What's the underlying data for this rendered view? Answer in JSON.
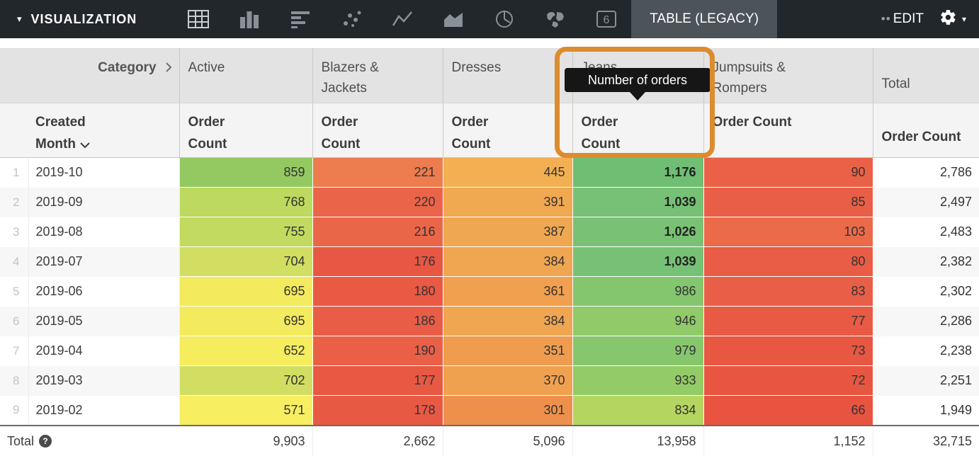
{
  "toolbar": {
    "visualization_label": "VISUALIZATION",
    "table_legacy_label": "TABLE (LEGACY)",
    "edit_label": "EDIT",
    "single_value_digit": "6",
    "icons": [
      "table-icon",
      "column-chart-icon",
      "bar-chart-icon",
      "scatter-plot-icon",
      "line-chart-icon",
      "area-chart-icon",
      "pie-chart-icon",
      "map-icon",
      "single-value-icon"
    ],
    "colors": {
      "bar_bg": "#22272C",
      "selected_btn_bg": "#4C5359",
      "icon_gray": "#8A9097",
      "icon_active": "#C9CDD2"
    }
  },
  "tooltip": {
    "text": "Number of orders"
  },
  "annotation": {
    "color": "#DC8C2E"
  },
  "table": {
    "category_label": "Category",
    "created_month_label": "Created Month",
    "measure_label": "Order Count",
    "columns": [
      "Active",
      "Blazers & Jackets",
      "Dresses",
      "Jeans",
      "Jumpsuits & Rompers",
      "Total"
    ],
    "rows": [
      {
        "num": "1",
        "month": "2019-10",
        "cells": [
          {
            "v": "859",
            "bg": "#94C962"
          },
          {
            "v": "221",
            "bg": "#ED7C4E"
          },
          {
            "v": "445",
            "bg": "#F2B053"
          },
          {
            "v": "1,176",
            "bg": "#6FBE73",
            "bold": true
          },
          {
            "v": "90",
            "bg": "#EA6148"
          },
          {
            "v": "2,786"
          }
        ]
      },
      {
        "num": "2",
        "month": "2019-09",
        "cells": [
          {
            "v": "768",
            "bg": "#BED95F"
          },
          {
            "v": "220",
            "bg": "#EA6449"
          },
          {
            "v": "391",
            "bg": "#F0A851"
          },
          {
            "v": "1,039",
            "bg": "#77C176",
            "bold": true
          },
          {
            "v": "85",
            "bg": "#E95E46"
          },
          {
            "v": "2,497"
          }
        ]
      },
      {
        "num": "3",
        "month": "2019-08",
        "cells": [
          {
            "v": "755",
            "bg": "#C1DA5F"
          },
          {
            "v": "216",
            "bg": "#EA6649"
          },
          {
            "v": "387",
            "bg": "#F0A751"
          },
          {
            "v": "1,026",
            "bg": "#79C275",
            "bold": true
          },
          {
            "v": "103",
            "bg": "#EB6A4A"
          },
          {
            "v": "2,483"
          }
        ]
      },
      {
        "num": "4",
        "month": "2019-07",
        "cells": [
          {
            "v": "704",
            "bg": "#D1DE61"
          },
          {
            "v": "176",
            "bg": "#E85743"
          },
          {
            "v": "384",
            "bg": "#F0A651"
          },
          {
            "v": "1,039",
            "bg": "#77C176",
            "bold": true
          },
          {
            "v": "80",
            "bg": "#E95C45"
          },
          {
            "v": "2,382"
          }
        ]
      },
      {
        "num": "5",
        "month": "2019-06",
        "cells": [
          {
            "v": "695",
            "bg": "#F3EB5D"
          },
          {
            "v": "180",
            "bg": "#E95944"
          },
          {
            "v": "361",
            "bg": "#F0A04F"
          },
          {
            "v": "986",
            "bg": "#84C66E"
          },
          {
            "v": "83",
            "bg": "#E95E46"
          },
          {
            "v": "2,302"
          }
        ]
      },
      {
        "num": "6",
        "month": "2019-05",
        "cells": [
          {
            "v": "695",
            "bg": "#F3EB5D"
          },
          {
            "v": "186",
            "bg": "#E95D46"
          },
          {
            "v": "384",
            "bg": "#F0A651"
          },
          {
            "v": "946",
            "bg": "#90CA69"
          },
          {
            "v": "77",
            "bg": "#E95A44"
          },
          {
            "v": "2,286"
          }
        ]
      },
      {
        "num": "7",
        "month": "2019-04",
        "cells": [
          {
            "v": "652",
            "bg": "#F5EC5E"
          },
          {
            "v": "190",
            "bg": "#E96047"
          },
          {
            "v": "351",
            "bg": "#EF9C4E"
          },
          {
            "v": "979",
            "bg": "#86C76D"
          },
          {
            "v": "73",
            "bg": "#E85742"
          },
          {
            "v": "2,238"
          }
        ]
      },
      {
        "num": "8",
        "month": "2019-03",
        "cells": [
          {
            "v": "702",
            "bg": "#D2DE62"
          },
          {
            "v": "177",
            "bg": "#E85843"
          },
          {
            "v": "370",
            "bg": "#F0A150"
          },
          {
            "v": "933",
            "bg": "#93CB67"
          },
          {
            "v": "72",
            "bg": "#E85641"
          },
          {
            "v": "2,251"
          }
        ]
      },
      {
        "num": "9",
        "month": "2019-02",
        "cells": [
          {
            "v": "571",
            "bg": "#F7EE62"
          },
          {
            "v": "178",
            "bg": "#E85943"
          },
          {
            "v": "301",
            "bg": "#EE904C"
          },
          {
            "v": "834",
            "bg": "#B5D561"
          },
          {
            "v": "66",
            "bg": "#E85440"
          },
          {
            "v": "1,949"
          }
        ]
      }
    ],
    "total_row": {
      "label": "Total",
      "help_glyph": "?",
      "values": [
        "9,903",
        "2,662",
        "5,096",
        "13,958",
        "1,152",
        "32,715"
      ]
    }
  }
}
